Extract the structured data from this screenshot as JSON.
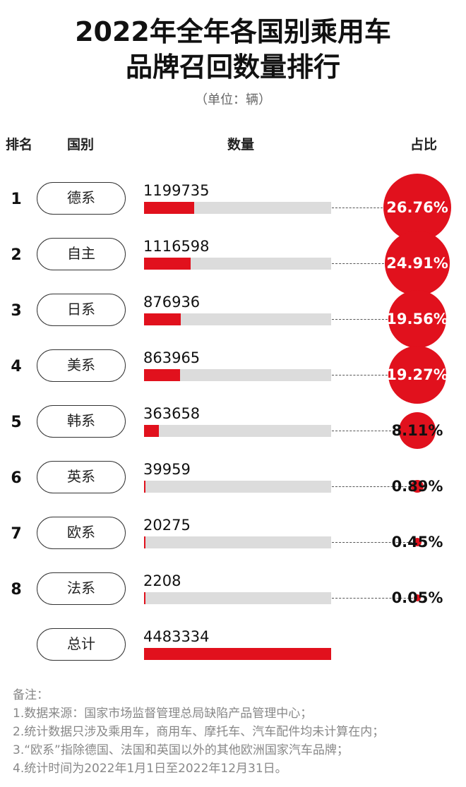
{
  "title_line1": "2022年全年各国别乘用车",
  "title_line2": "品牌召回数量排行",
  "unit": "（单位：辆）",
  "headers": {
    "rank": "排名",
    "country": "国别",
    "quantity": "数量",
    "share": "占比"
  },
  "colors": {
    "accent": "#e1111d",
    "track": "#dcdcdc"
  },
  "chart_data": {
    "type": "bar",
    "title": "2022年全年各国别乘用车品牌召回数量排行",
    "unit": "（单位：辆）",
    "categories": [
      "德系",
      "自主",
      "日系",
      "美系",
      "韩系",
      "英系",
      "欧系",
      "法系"
    ],
    "ranks": [
      "1",
      "2",
      "3",
      "4",
      "5",
      "6",
      "7",
      "8"
    ],
    "values": [
      1199735,
      1116598,
      876936,
      863965,
      363658,
      39959,
      20275,
      2208
    ],
    "shares": [
      "26.76%",
      "24.91%",
      "19.56%",
      "19.27%",
      "8.11%",
      "0.89%",
      "0.45%",
      "0.05%"
    ],
    "share_values": [
      26.76,
      24.91,
      19.56,
      19.27,
      8.11,
      0.89,
      0.45,
      0.05
    ],
    "total": {
      "label": "总计",
      "value": 4483334
    }
  },
  "notes": [
    "备注：",
    "1.数据来源：国家市场监督管理总局缺陷产品管理中心；",
    "2.统计数据只涉及乘用车，商用车、摩托车、汽车配件均未计算在内；",
    "3.“欧系”指除德国、法国和英国以外的其他欧洲国家汽车品牌；",
    "4.统计时间为2022年1月1日至2022年12月31日。"
  ]
}
